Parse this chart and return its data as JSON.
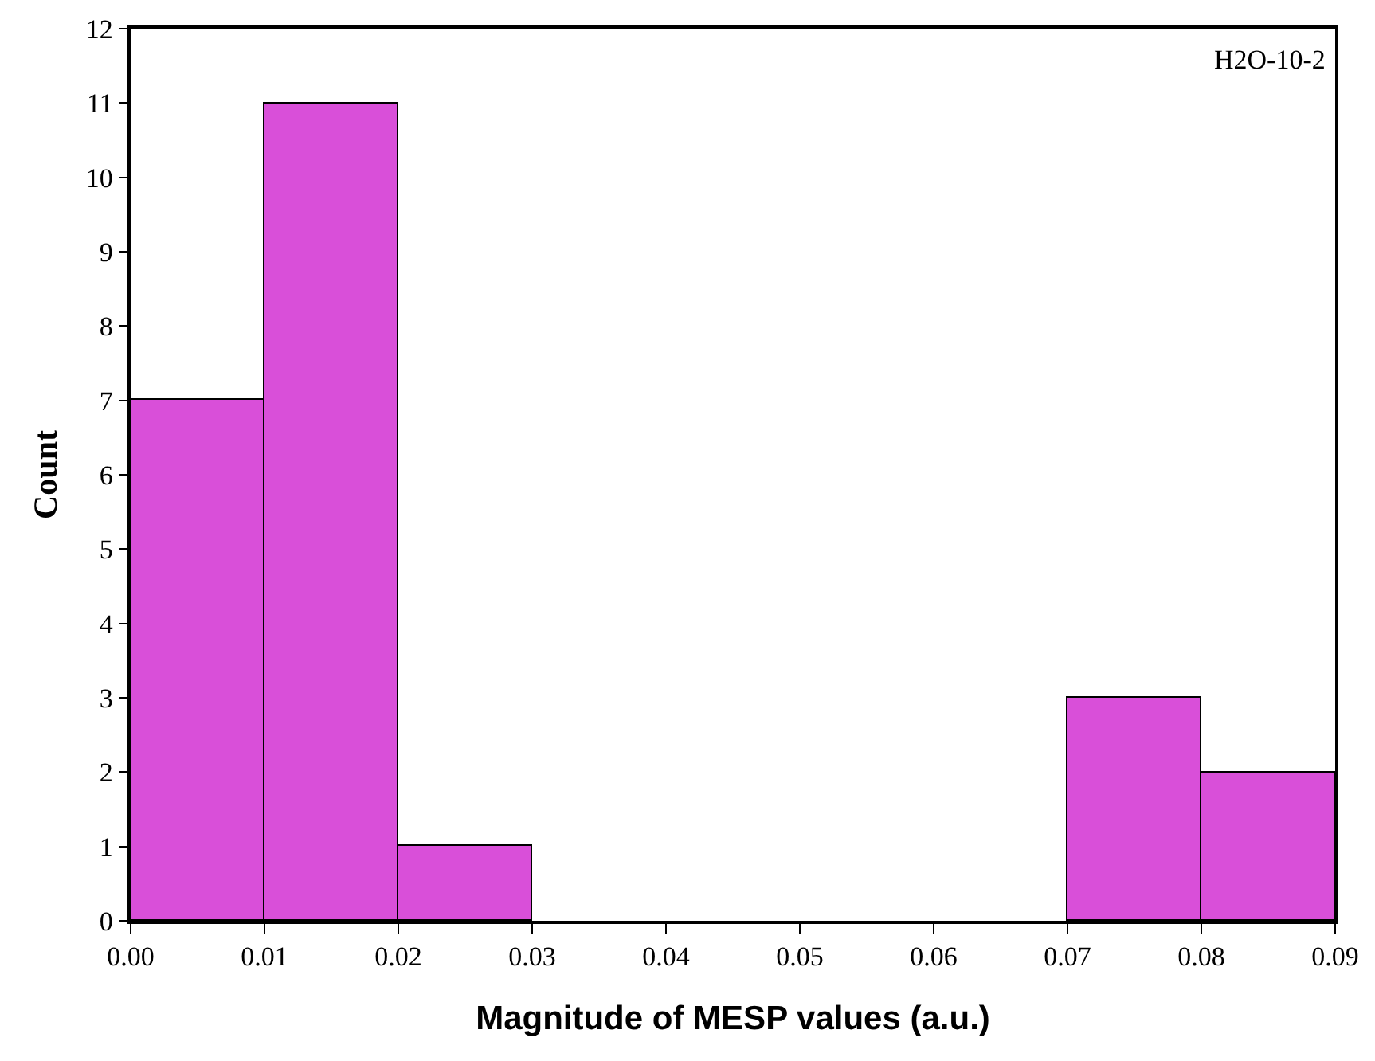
{
  "chart_data": {
    "type": "histogram",
    "xlabel": "Magnitude of MESP values (a.u.)",
    "ylabel": "Count",
    "annotations": [
      "H2O-10-2"
    ],
    "bins": [
      0,
      0.01,
      0.02,
      0.03,
      0.04,
      0.05,
      0.06,
      0.07,
      0.08,
      0.09
    ],
    "values": [
      7,
      11,
      1,
      0,
      0,
      0,
      0,
      3,
      2
    ],
    "color": "#d94fd9",
    "xlim": [
      0,
      0.09
    ],
    "xticks": [
      {
        "value": 0,
        "label": "0.00"
      },
      {
        "value": 0.01,
        "label": "0.01"
      },
      {
        "value": 0.02,
        "label": "0.02"
      },
      {
        "value": 0.03,
        "label": "0.03"
      },
      {
        "value": 0.04,
        "label": "0.04"
      },
      {
        "value": 0.05,
        "label": "0.05"
      },
      {
        "value": 0.06,
        "label": "0.06"
      },
      {
        "value": 0.07,
        "label": "0.07"
      },
      {
        "value": 0.08,
        "label": "0.08"
      },
      {
        "value": 0.09,
        "label": "0.09"
      }
    ],
    "ylim": [
      0,
      12
    ],
    "yticks": [
      0,
      1,
      2,
      3,
      4,
      5,
      6,
      7,
      8,
      9,
      10,
      11,
      12
    ],
    "grid": false
  }
}
